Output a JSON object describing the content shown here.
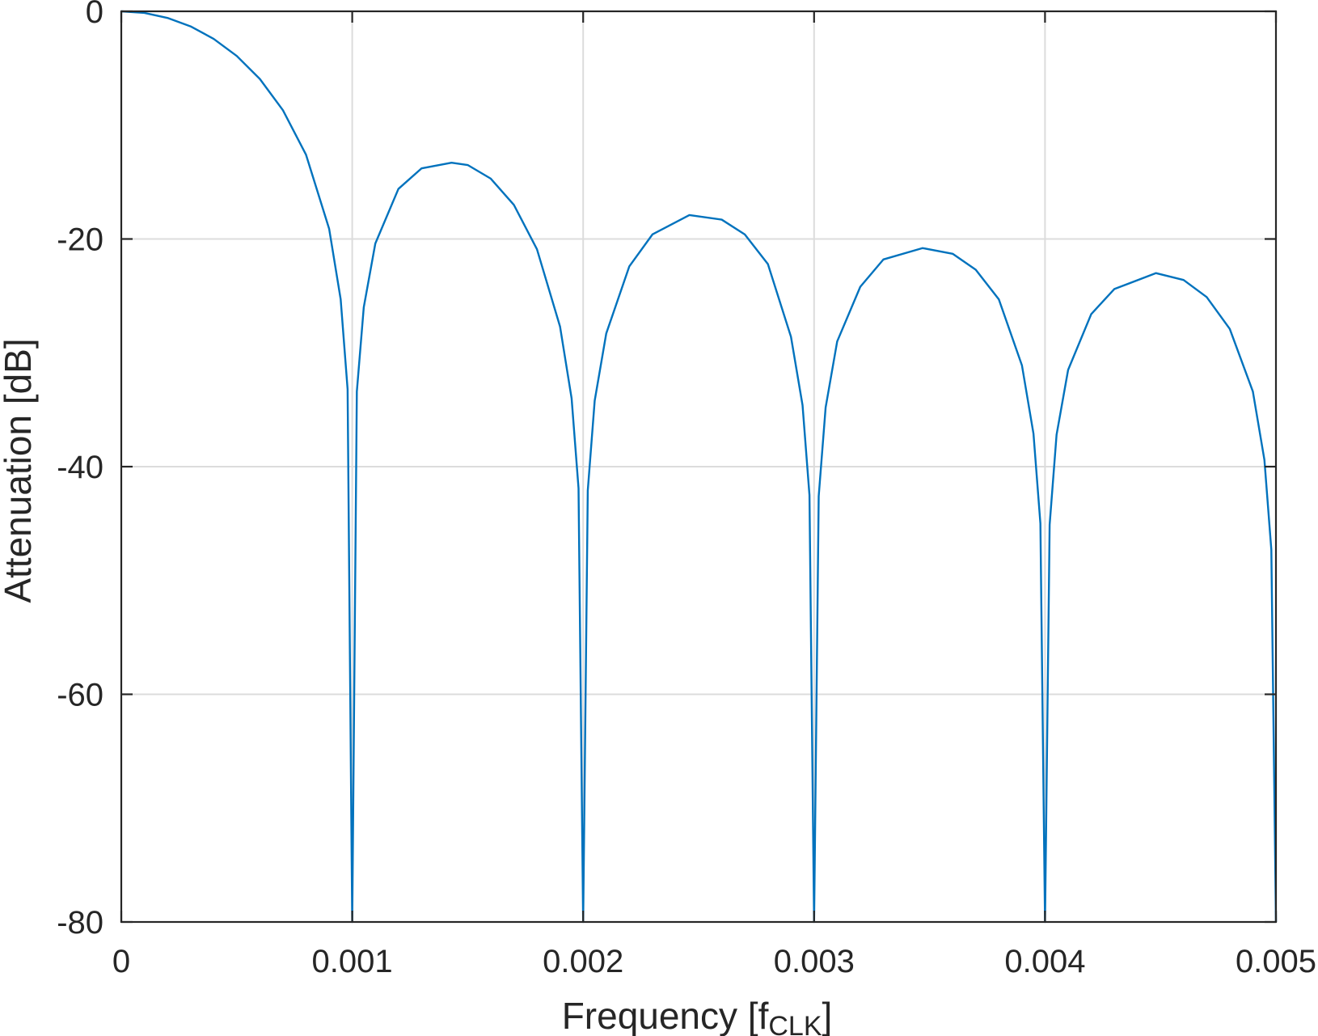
{
  "chart_data": {
    "type": "line",
    "xlabel": "Frequency [f",
    "xlabel_sub": "CLK",
    "xlabel_close": "]",
    "ylabel": "Attenuation [dB]",
    "xlim": [
      0,
      0.005
    ],
    "ylim": [
      -80,
      0
    ],
    "xticks": [
      0,
      0.001,
      0.002,
      0.003,
      0.004,
      0.005
    ],
    "xtick_labels": [
      "0",
      "0.001",
      "0.002",
      "0.003",
      "0.004",
      "0.005"
    ],
    "yticks": [
      0,
      -20,
      -40,
      -60,
      -80
    ],
    "ytick_labels": [
      "0",
      "-20",
      "-40",
      "-60",
      "-80"
    ],
    "grid": true,
    "series": [
      {
        "color": "#0072bd",
        "x": [
          0,
          0.0001,
          0.0002,
          0.0003,
          0.0004,
          0.0005,
          0.0006,
          0.0007,
          0.0008,
          0.0009,
          0.00095,
          0.00098,
          0.001,
          0.00102,
          0.00105,
          0.0011,
          0.0012,
          0.0013,
          0.00143,
          0.0015,
          0.0016,
          0.0017,
          0.0018,
          0.0019,
          0.00195,
          0.00198,
          0.002,
          0.00202,
          0.00205,
          0.0021,
          0.0022,
          0.0023,
          0.00246,
          0.0026,
          0.0027,
          0.0028,
          0.0029,
          0.00295,
          0.00298,
          0.003,
          0.00302,
          0.00305,
          0.0031,
          0.0032,
          0.0033,
          0.00347,
          0.0036,
          0.0037,
          0.0038,
          0.0039,
          0.00395,
          0.00398,
          0.004,
          0.00402,
          0.00405,
          0.0041,
          0.0042,
          0.0043,
          0.00448,
          0.0046,
          0.0047,
          0.0048,
          0.0049,
          0.00495,
          0.00498,
          0.005
        ],
        "y": [
          0,
          -0.14,
          -0.58,
          -1.32,
          -2.42,
          -3.92,
          -5.94,
          -8.69,
          -12.6,
          -19.1,
          -25.3,
          -33.2,
          -80,
          -33.4,
          -26.0,
          -20.4,
          -15.6,
          -13.8,
          -13.3,
          -13.5,
          -14.7,
          -17.0,
          -20.9,
          -27.7,
          -34.0,
          -41.9,
          -80,
          -42.1,
          -34.2,
          -28.3,
          -22.4,
          -19.6,
          -17.9,
          -18.3,
          -19.6,
          -22.2,
          -28.6,
          -34.6,
          -42.5,
          -80,
          -42.6,
          -34.8,
          -29.0,
          -24.2,
          -21.8,
          -20.8,
          -21.3,
          -22.7,
          -25.3,
          -31.1,
          -37.1,
          -45.0,
          -80,
          -45.1,
          -37.2,
          -31.5,
          -26.6,
          -24.4,
          -23.0,
          -23.6,
          -25.1,
          -27.9,
          -33.4,
          -39.4,
          -47.3,
          -80
        ]
      }
    ]
  }
}
